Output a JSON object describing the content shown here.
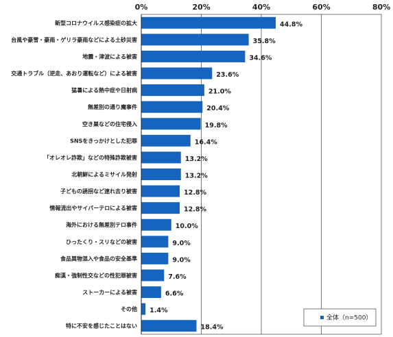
{
  "chart_data": {
    "type": "bar",
    "orientation": "horizontal",
    "title": "",
    "xlabel": "",
    "ylabel": "",
    "xlim": [
      0,
      80
    ],
    "x_ticks": [
      "0%",
      "20%",
      "40%",
      "60%",
      "80%"
    ],
    "x_tick_values": [
      0,
      20,
      40,
      60,
      80
    ],
    "grid": true,
    "legend_position": "bottom-right",
    "bar_color": "#1565c0",
    "categories": [
      "新型コロナウイルス感染症の拡大",
      "台風や豪雪・豪雨・ゲリラ豪雨などによる土砂災害",
      "地震・津波による被害",
      "交通トラブル（逆走、あおり運転など）による被害",
      "猛暑による熱中症や日射病",
      "無差別の通り魔事件",
      "空き巣などの住宅侵入",
      "SNSをきっかけとした犯罪",
      "「オレオレ詐欺」などの特殊詐欺被害",
      "北朝鮮によるミサイル発射",
      "子どもの誘拐など連れ去り被害",
      "情報流出やサイバーテロによる被害",
      "海外における無差別テロ事件",
      "ひったくり・スリなどの被害",
      "食品異物混入や食品の安全基準",
      "痴漢・強制性交などの性犯罪被害",
      "ストーカーによる被害",
      "その他",
      "特に不安を感じたことはない"
    ],
    "series": [
      {
        "name": "全体（n=500）",
        "values": [
          44.8,
          35.8,
          34.6,
          23.6,
          21.0,
          20.4,
          19.8,
          16.4,
          13.2,
          13.2,
          12.8,
          12.8,
          10.0,
          9.0,
          9.0,
          7.6,
          6.6,
          1.4,
          18.4
        ],
        "labels": [
          "44.8%",
          "35.8%",
          "34.6%",
          "23.6%",
          "21.0%",
          "20.4%",
          "19.8%",
          "16.4%",
          "13.2%",
          "13.2%",
          "12.8%",
          "12.8%",
          "10.0%",
          "9.0%",
          "9.0%",
          "7.6%",
          "6.6%",
          "1.4%",
          "18.4%"
        ]
      }
    ]
  }
}
